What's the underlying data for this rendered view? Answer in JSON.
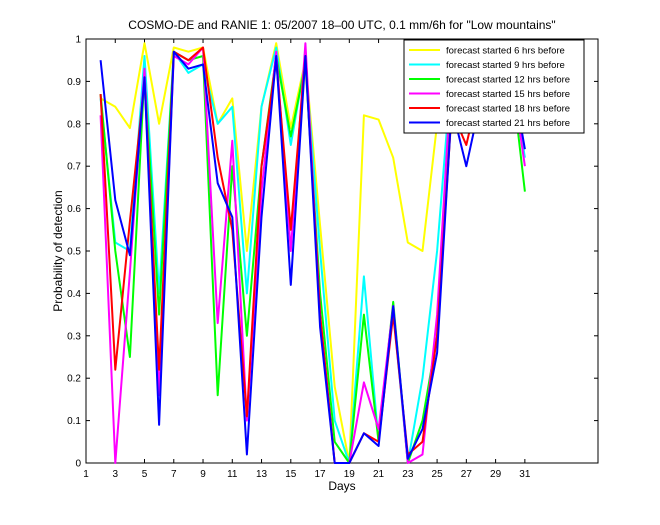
{
  "chart_data": {
    "type": "line",
    "title": "COSMO-DE and RANIE 1: 05/2007 18–00 UTC, 0.1 mm/6h for \"Low mountains\"",
    "xlabel": "Days",
    "ylabel": "Probability of detection",
    "xlim": [
      1,
      36
    ],
    "ylim": [
      0,
      1
    ],
    "x_ticks": [
      1,
      3,
      5,
      7,
      9,
      11,
      13,
      15,
      17,
      19,
      21,
      23,
      25,
      27,
      29,
      31
    ],
    "y_ticks": [
      0,
      0.1,
      0.2,
      0.3,
      0.4,
      0.5,
      0.6,
      0.7,
      0.8,
      0.9,
      1
    ],
    "x_tick_labels": [
      "1",
      "3",
      "5",
      "7",
      "9",
      "11",
      "13",
      "15",
      "17",
      "19",
      "21",
      "23",
      "25",
      "27",
      "29",
      "31"
    ],
    "y_tick_labels": [
      "0",
      "0.1",
      "0.2",
      "0.3",
      "0.4",
      "0.5",
      "0.6",
      "0.7",
      "0.8",
      "0.9",
      "1"
    ],
    "legend_position": "top-right",
    "grid": false,
    "x": [
      2,
      3,
      4,
      5,
      6,
      7,
      8,
      9,
      10,
      11,
      12,
      13,
      14,
      15,
      16,
      17,
      18,
      19,
      20,
      21,
      22,
      23,
      24,
      25,
      26,
      27,
      28,
      29,
      30,
      31
    ],
    "series": [
      {
        "name": "forecast started 6 hrs before",
        "color": "#ffff00",
        "values": [
          0.86,
          0.84,
          0.79,
          0.99,
          0.8,
          0.98,
          0.97,
          0.98,
          0.8,
          0.86,
          0.5,
          0.84,
          0.99,
          0.79,
          0.95,
          0.56,
          0.18,
          0.0,
          0.82,
          0.81,
          0.72,
          0.52,
          0.5,
          0.8,
          0.97,
          0.85,
          0.99,
          0.94,
          0.94,
          0.8
        ]
      },
      {
        "name": "forecast started 9 hrs before",
        "color": "#00ffff",
        "values": [
          0.86,
          0.52,
          0.5,
          0.96,
          0.4,
          0.97,
          0.92,
          0.94,
          0.8,
          0.84,
          0.4,
          0.84,
          0.98,
          0.75,
          0.95,
          0.5,
          0.1,
          0.0,
          0.44,
          0.05,
          0.36,
          0.0,
          0.2,
          0.5,
          0.93,
          0.84,
          0.96,
          0.95,
          0.94,
          0.72
        ]
      },
      {
        "name": "forecast started 12 hrs before",
        "color": "#00ff00",
        "values": [
          0.87,
          0.5,
          0.25,
          0.92,
          0.35,
          0.97,
          0.95,
          0.96,
          0.16,
          0.7,
          0.3,
          0.7,
          0.96,
          0.77,
          0.94,
          0.4,
          0.05,
          0.0,
          0.35,
          0.05,
          0.38,
          0.0,
          0.1,
          0.3,
          0.9,
          0.82,
          0.92,
          0.94,
          0.94,
          0.64
        ]
      },
      {
        "name": "forecast started 15 hrs before",
        "color": "#ff00ff",
        "values": [
          0.82,
          0.0,
          0.45,
          0.93,
          0.16,
          0.96,
          0.94,
          0.98,
          0.33,
          0.76,
          0.1,
          0.64,
          0.97,
          0.5,
          0.99,
          0.35,
          0.0,
          0.0,
          0.19,
          0.08,
          0.37,
          0.0,
          0.02,
          0.35,
          0.93,
          0.81,
          0.93,
          0.95,
          0.94,
          0.7
        ]
      },
      {
        "name": "forecast started 18 hrs before",
        "color": "#ff0000",
        "values": [
          0.87,
          0.22,
          0.57,
          0.9,
          0.22,
          0.97,
          0.95,
          0.98,
          0.72,
          0.55,
          0.11,
          0.7,
          0.95,
          0.55,
          0.96,
          0.35,
          0.0,
          0.0,
          0.07,
          0.05,
          0.35,
          0.02,
          0.05,
          0.3,
          0.83,
          0.75,
          0.9,
          0.95,
          0.94,
          0.85
        ]
      },
      {
        "name": "forecast started 21 hrs before",
        "color": "#0000ff",
        "values": [
          0.95,
          0.62,
          0.49,
          0.91,
          0.09,
          0.97,
          0.93,
          0.94,
          0.66,
          0.58,
          0.02,
          0.58,
          0.96,
          0.42,
          0.96,
          0.32,
          0.0,
          0.0,
          0.07,
          0.04,
          0.37,
          0.01,
          0.08,
          0.26,
          0.84,
          0.7,
          0.86,
          0.93,
          0.94,
          0.74
        ]
      }
    ]
  }
}
